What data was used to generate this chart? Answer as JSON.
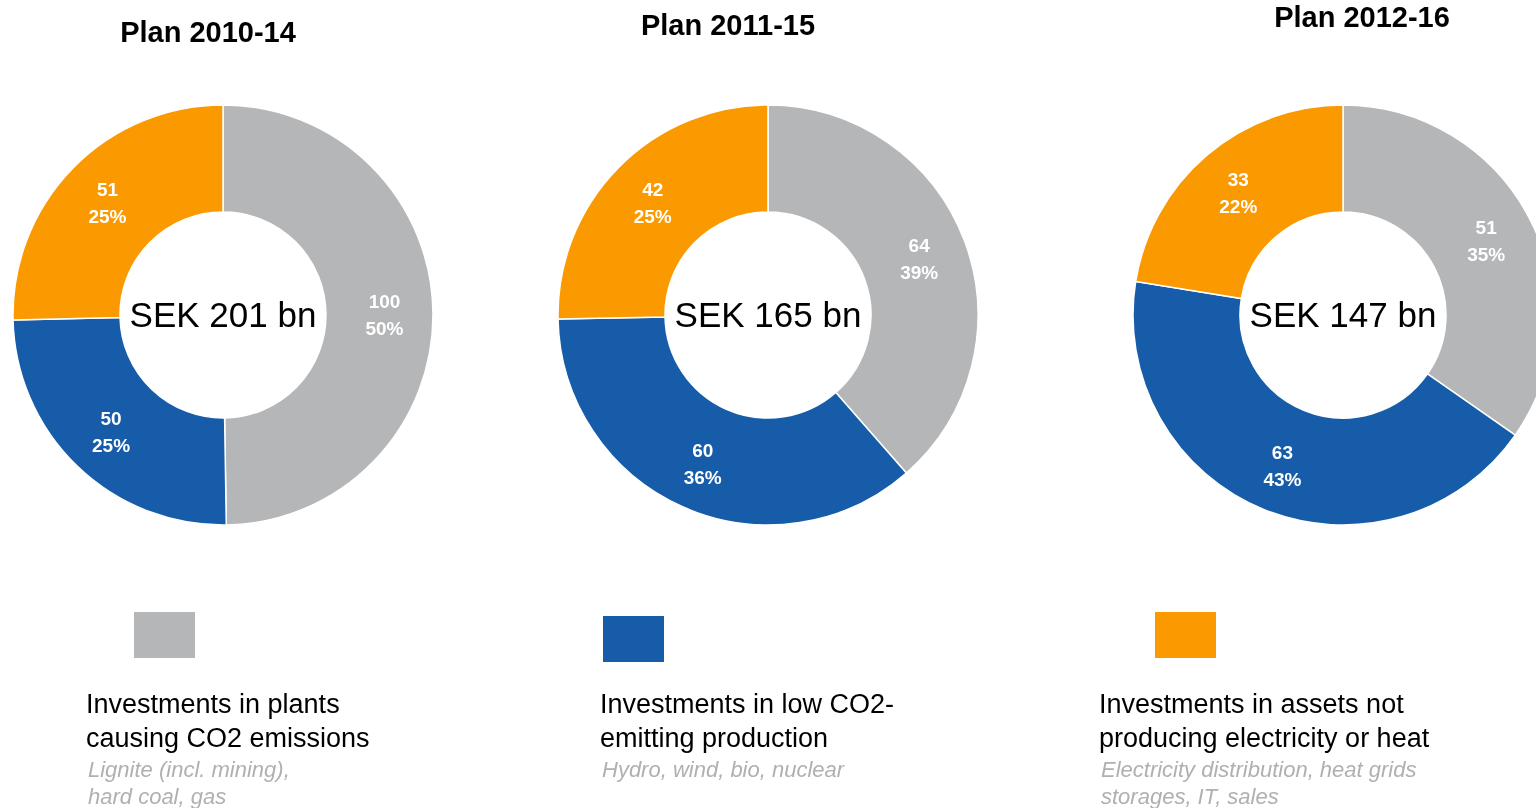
{
  "chart_data": [
    {
      "type": "donut",
      "title": "Plan 2010-14",
      "categories": [
        "Investments in plants\ncausing CO2 emissions",
        "Investments in low CO2-\nemitting production",
        "Investments in assets not\nproducing electricity or heat"
      ],
      "values": [
        100,
        50,
        51
      ],
      "colors": [
        "#b5b6b8",
        "#165ca8",
        "#fb9a00"
      ],
      "value_labels": [
        "100\n50%",
        "50\n25%",
        "51\n25%"
      ],
      "annotations": [
        "SEK 201 bn",
        "Lignite (incl. mining),\nhard coal, gas",
        "Hydro, wind, bio, nuclear",
        "Electricity distribution, heat grids\nstorages, IT, sales"
      ],
      "legend": "bottom"
    },
    {
      "type": "donut",
      "title": "Plan 2011-15",
      "categories": [
        null,
        null,
        null
      ],
      "values": [
        64,
        60,
        42
      ],
      "colors": [
        "#b5b6b8",
        "#165ca8",
        "#fb9a00"
      ],
      "value_labels": [
        "64\n39%",
        "60\n36%",
        "42\n25%"
      ],
      "annotations": [
        "SEK 165 bn"
      ]
    },
    {
      "type": "donut",
      "title": "Plan 2012-16",
      "categories": [
        null,
        null,
        null
      ],
      "values": [
        51,
        63,
        33
      ],
      "colors": [
        "#b5b6b8",
        "#165ca8",
        "#fb9a00"
      ],
      "value_labels": [
        "51\n35%",
        "63\n43%",
        "33\n22%"
      ],
      "annotations": [
        "SEK 147 bn"
      ]
    }
  ]
}
